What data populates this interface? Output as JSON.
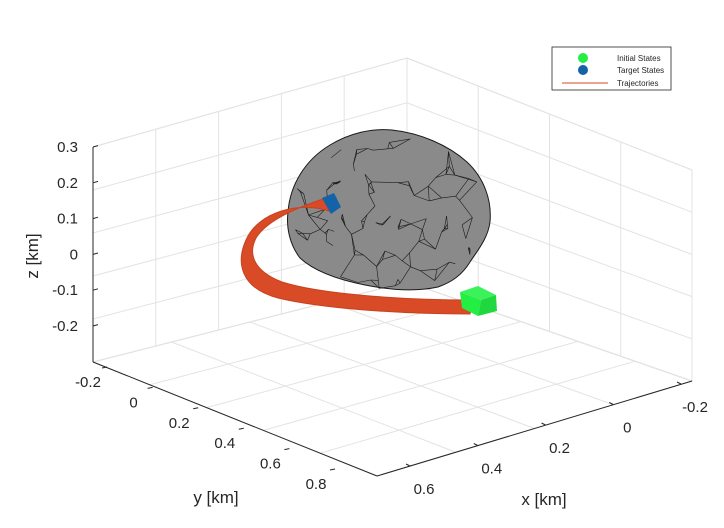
{
  "chart_data": {
    "type": "3d-trajectory",
    "title": "",
    "xlabel": "x [km]",
    "ylabel": "y [km]",
    "zlabel": "z [km]",
    "x_ticks": [
      "-0.2",
      "0",
      "0.2",
      "0.4",
      "0.6"
    ],
    "y_ticks": [
      "-0.2",
      "0",
      "0.2",
      "0.4",
      "0.6",
      "0.8"
    ],
    "z_ticks": [
      "0.3",
      "0.2",
      "0.1",
      "0",
      "-0.1",
      "-0.2"
    ],
    "grid": true,
    "legend_position": "top-right",
    "legend": [
      {
        "label": "Initial States",
        "marker": "circle",
        "color": "#22ee44"
      },
      {
        "label": "Target States",
        "marker": "circle",
        "color": "#1462a8"
      },
      {
        "label": "Trajectories",
        "marker": "line",
        "color": "#d94a26"
      }
    ],
    "colors": {
      "body_fill": "#8a8a8a",
      "body_edge": "#1a1a1a",
      "trajectory": "#d94a26",
      "initial": "#22ee44",
      "target": "#1462a8",
      "grid": "#dcdcdc",
      "axis": "#262626"
    },
    "series": [
      {
        "name": "Trajectories",
        "role": "trajectory"
      },
      {
        "name": "Initial States",
        "role": "initial"
      },
      {
        "name": "Target States",
        "role": "target"
      }
    ]
  }
}
